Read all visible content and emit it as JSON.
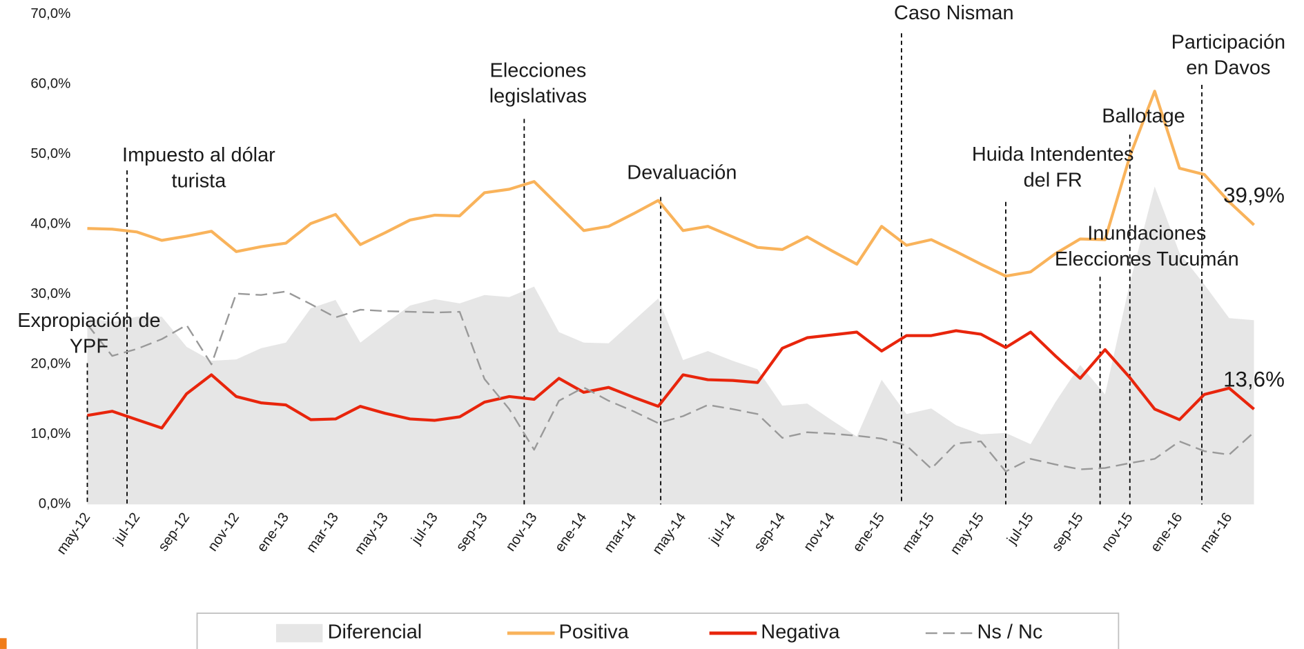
{
  "chart_data": {
    "type": "line",
    "categories": [
      "may-12",
      null,
      "jul-12",
      null,
      "sep-12",
      null,
      "nov-12",
      null,
      "ene-13",
      null,
      "mar-13",
      null,
      "may-13",
      null,
      "jul-13",
      null,
      "sep-13",
      null,
      "nov-13",
      null,
      "ene-14",
      null,
      "mar-14",
      null,
      "may-14",
      null,
      "jul-14",
      null,
      "sep-14",
      null,
      "nov-14",
      null,
      "ene-15",
      null,
      "mar-15",
      null,
      "may-15",
      null,
      "jul-15",
      null,
      "sep-15",
      null,
      "nov-15",
      null,
      "ene-16",
      null,
      "mar-16",
      null
    ],
    "ylim": [
      0,
      70
    ],
    "yticks": [
      {
        "value": 0,
        "label": "0,0%"
      },
      {
        "value": 10,
        "label": "10,0%"
      },
      {
        "value": 20,
        "label": "20,0%"
      },
      {
        "value": 30,
        "label": "30,0%"
      },
      {
        "value": 40,
        "label": "40,0%"
      },
      {
        "value": 50,
        "label": "50,0%"
      },
      {
        "value": 60,
        "label": "60,0%"
      },
      {
        "value": 70,
        "label": "70,0%"
      }
    ],
    "grid": false,
    "legend": "bottom",
    "series": [
      {
        "name": "Diferencial",
        "kind": "area",
        "color": "#e6e6e6",
        "values": [
          26.7,
          26.0,
          26.8,
          26.8,
          22.5,
          20.5,
          20.7,
          22.3,
          23.1,
          28.0,
          29.2,
          23.1,
          25.8,
          28.4,
          29.3,
          28.7,
          29.9,
          29.6,
          31.1,
          24.6,
          23.1,
          23.0,
          26.2,
          29.4,
          20.6,
          21.9,
          20.5,
          19.3,
          14.1,
          14.4,
          12.0,
          9.7,
          17.8,
          12.9,
          13.7,
          11.3,
          10.0,
          10.2,
          8.6,
          14.6,
          19.9,
          15.7,
          31.6,
          45.4,
          35.9,
          31.4,
          26.6,
          26.3
        ]
      },
      {
        "name": "Positiva",
        "kind": "line",
        "color": "#f9b35b",
        "values": [
          39.4,
          39.3,
          38.9,
          37.7,
          38.3,
          39.0,
          36.1,
          36.8,
          37.3,
          40.1,
          41.4,
          37.1,
          38.8,
          40.6,
          41.3,
          41.2,
          44.5,
          45.0,
          46.1,
          42.6,
          39.1,
          39.7,
          41.5,
          43.4,
          39.1,
          39.7,
          38.2,
          36.7,
          36.4,
          38.2,
          36.2,
          34.3,
          39.7,
          37.0,
          37.8,
          36.1,
          34.3,
          32.6,
          33.2,
          35.8,
          37.9,
          37.8,
          49.7,
          59.0,
          48.0,
          47.1,
          43.2,
          39.9
        ],
        "value_labels": [
          null,
          null,
          null,
          null,
          null,
          null,
          null,
          null,
          null,
          null,
          null,
          null,
          null,
          null,
          null,
          null,
          null,
          null,
          null,
          null,
          null,
          null,
          null,
          null,
          null,
          null,
          null,
          null,
          null,
          null,
          null,
          null,
          null,
          null,
          null,
          null,
          null,
          null,
          null,
          null,
          null,
          null,
          null,
          null,
          null,
          null,
          null,
          "39,9%"
        ]
      },
      {
        "name": "Negativa",
        "kind": "line",
        "color": "#e8250c",
        "values": [
          12.7,
          13.3,
          12.1,
          10.9,
          15.8,
          18.5,
          15.4,
          14.5,
          14.2,
          12.1,
          12.2,
          14.0,
          13.0,
          12.2,
          12.0,
          12.5,
          14.6,
          15.4,
          15.0,
          18.0,
          16.0,
          16.7,
          15.3,
          14.0,
          18.5,
          17.8,
          17.7,
          17.4,
          22.3,
          23.8,
          24.2,
          24.6,
          21.9,
          24.1,
          24.1,
          24.8,
          24.3,
          22.4,
          24.6,
          21.2,
          18.0,
          22.1,
          18.1,
          13.6,
          12.1,
          15.7,
          16.6,
          13.6
        ],
        "value_labels": [
          null,
          null,
          null,
          null,
          null,
          null,
          null,
          null,
          null,
          null,
          null,
          null,
          null,
          null,
          null,
          null,
          null,
          null,
          null,
          null,
          null,
          null,
          null,
          null,
          null,
          null,
          null,
          null,
          null,
          null,
          null,
          null,
          null,
          null,
          null,
          null,
          null,
          null,
          null,
          null,
          null,
          null,
          null,
          null,
          null,
          null,
          null,
          "13,6%"
        ]
      },
      {
        "name": "Ns / Nc",
        "kind": "line",
        "dashed": true,
        "color": "#999999",
        "values": [
          25.7,
          21.2,
          22.2,
          23.6,
          25.6,
          20.0,
          30.1,
          29.9,
          30.4,
          28.6,
          26.7,
          27.8,
          27.6,
          27.5,
          27.4,
          27.5,
          17.9,
          13.6,
          7.8,
          14.8,
          16.7,
          14.8,
          13.3,
          11.6,
          12.6,
          14.2,
          13.6,
          12.9,
          9.5,
          10.3,
          10.1,
          9.8,
          9.4,
          8.4,
          5.1,
          8.7,
          9.0,
          4.7,
          6.5,
          5.7,
          5.0,
          5.2,
          5.9,
          6.5,
          9.0,
          7.6,
          7.1,
          10.3
        ]
      }
    ],
    "annotations": [
      {
        "text": [
          "Expropiación de",
          "YPF"
        ],
        "x": 0
      },
      {
        "text": [
          "Impuesto al dólar",
          "turista"
        ],
        "x": 1.6
      },
      {
        "text": [
          "Elecciones",
          "legislativas"
        ],
        "x": 17.6
      },
      {
        "text": [
          "Devaluación"
        ],
        "x": 23.1
      },
      {
        "text": [
          "Caso Nisman"
        ],
        "x": 32.8
      },
      {
        "text": [
          "Huida Intendentes",
          "del FR"
        ],
        "x": 37
      },
      {
        "text": [
          "Inundaciones",
          "Elecciones Tucumán"
        ],
        "x": 40.8
      },
      {
        "text": [
          "Ballotage"
        ],
        "x": 42
      },
      {
        "text": [
          "Participación",
          "en Davos"
        ],
        "x": 44.9
      }
    ]
  }
}
